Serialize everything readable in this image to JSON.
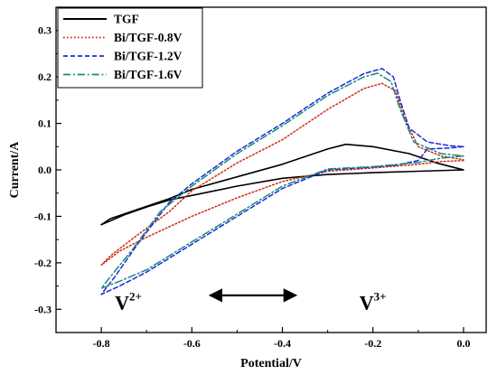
{
  "chart_data": {
    "type": "line",
    "title": "",
    "xlabel": "Potential/V",
    "ylabel": "Current/A",
    "xlim": [
      -0.9,
      0.05
    ],
    "ylim": [
      -0.35,
      0.35
    ],
    "x_ticks": [
      -0.8,
      -0.6,
      -0.4,
      -0.2,
      0.0
    ],
    "x_tick_labels": [
      "-0.8",
      "-0.6",
      "-0.4",
      "-0.2",
      "0.0"
    ],
    "y_ticks": [
      -0.3,
      -0.2,
      -0.1,
      0.0,
      0.1,
      0.2,
      0.3
    ],
    "y_tick_labels": [
      "-0.3",
      "-0.2",
      "-0.1",
      "0.0",
      "0.1",
      "0.2",
      "0.3"
    ],
    "grid": false,
    "legend_position": "top-left",
    "series": [
      {
        "name": "TGF",
        "color": "#000000",
        "dash": "solid",
        "points": [
          [
            0.0,
            0.0
          ],
          [
            -0.1,
            -0.003
          ],
          [
            -0.2,
            -0.006
          ],
          [
            -0.3,
            -0.01
          ],
          [
            -0.4,
            -0.018
          ],
          [
            -0.5,
            -0.035
          ],
          [
            -0.6,
            -0.055
          ],
          [
            -0.65,
            -0.065
          ],
          [
            -0.7,
            -0.08
          ],
          [
            -0.75,
            -0.097
          ],
          [
            -0.8,
            -0.118
          ],
          [
            -0.78,
            -0.105
          ],
          [
            -0.72,
            -0.085
          ],
          [
            -0.65,
            -0.062
          ],
          [
            -0.6,
            -0.042
          ],
          [
            -0.5,
            -0.015
          ],
          [
            -0.4,
            0.012
          ],
          [
            -0.3,
            0.045
          ],
          [
            -0.26,
            0.055
          ],
          [
            -0.2,
            0.05
          ],
          [
            -0.12,
            0.035
          ],
          [
            -0.06,
            0.015
          ],
          [
            0.0,
            0.0
          ]
        ]
      },
      {
        "name": "Bi/TGF-0.8V",
        "color": "#cc2a10",
        "dash": "dotted",
        "points": [
          [
            0.0,
            0.02
          ],
          [
            -0.05,
            0.018
          ],
          [
            -0.1,
            0.012
          ],
          [
            -0.2,
            0.004
          ],
          [
            -0.3,
            -0.003
          ],
          [
            -0.4,
            -0.025
          ],
          [
            -0.5,
            -0.06
          ],
          [
            -0.6,
            -0.1
          ],
          [
            -0.7,
            -0.145
          ],
          [
            -0.76,
            -0.175
          ],
          [
            -0.8,
            -0.205
          ],
          [
            -0.78,
            -0.185
          ],
          [
            -0.72,
            -0.14
          ],
          [
            -0.65,
            -0.09
          ],
          [
            -0.6,
            -0.045
          ],
          [
            -0.5,
            0.015
          ],
          [
            -0.4,
            0.065
          ],
          [
            -0.3,
            0.13
          ],
          [
            -0.22,
            0.175
          ],
          [
            -0.18,
            0.186
          ],
          [
            -0.15,
            0.17
          ],
          [
            -0.13,
            0.11
          ],
          [
            -0.1,
            0.05
          ],
          [
            -0.05,
            0.03
          ],
          [
            0.0,
            0.022
          ]
        ]
      },
      {
        "name": "Bi/TGF-1.2V",
        "color": "#1a2ad6",
        "dash": "dashed",
        "points": [
          [
            0.0,
            0.05
          ],
          [
            -0.03,
            0.047
          ],
          [
            -0.08,
            0.045
          ],
          [
            -0.1,
            0.02
          ],
          [
            -0.15,
            0.01
          ],
          [
            -0.2,
            0.006
          ],
          [
            -0.3,
            0.0
          ],
          [
            -0.4,
            -0.04
          ],
          [
            -0.5,
            -0.1
          ],
          [
            -0.6,
            -0.16
          ],
          [
            -0.7,
            -0.22
          ],
          [
            -0.76,
            -0.25
          ],
          [
            -0.8,
            -0.268
          ],
          [
            -0.77,
            -0.23
          ],
          [
            -0.72,
            -0.16
          ],
          [
            -0.65,
            -0.07
          ],
          [
            -0.6,
            -0.03
          ],
          [
            -0.5,
            0.04
          ],
          [
            -0.4,
            0.1
          ],
          [
            -0.3,
            0.165
          ],
          [
            -0.22,
            0.207
          ],
          [
            -0.18,
            0.218
          ],
          [
            -0.155,
            0.2
          ],
          [
            -0.14,
            0.15
          ],
          [
            -0.12,
            0.09
          ],
          [
            -0.08,
            0.06
          ],
          [
            -0.03,
            0.052
          ],
          [
            0.0,
            0.05
          ]
        ]
      },
      {
        "name": "Bi/TGF-1.6V",
        "color": "#198a78",
        "dash": "dashdot",
        "points": [
          [
            0.0,
            0.03
          ],
          [
            -0.05,
            0.025
          ],
          [
            -0.1,
            0.016
          ],
          [
            -0.2,
            0.007
          ],
          [
            -0.3,
            0.002
          ],
          [
            -0.4,
            -0.035
          ],
          [
            -0.5,
            -0.095
          ],
          [
            -0.6,
            -0.155
          ],
          [
            -0.7,
            -0.215
          ],
          [
            -0.76,
            -0.24
          ],
          [
            -0.8,
            -0.255
          ],
          [
            -0.78,
            -0.23
          ],
          [
            -0.73,
            -0.17
          ],
          [
            -0.67,
            -0.09
          ],
          [
            -0.6,
            -0.035
          ],
          [
            -0.5,
            0.035
          ],
          [
            -0.4,
            0.095
          ],
          [
            -0.3,
            0.16
          ],
          [
            -0.22,
            0.2
          ],
          [
            -0.19,
            0.208
          ],
          [
            -0.16,
            0.19
          ],
          [
            -0.14,
            0.13
          ],
          [
            -0.11,
            0.06
          ],
          [
            -0.05,
            0.035
          ],
          [
            0.0,
            0.03
          ]
        ]
      }
    ],
    "annotations": {
      "left": {
        "base": "V",
        "sup": "2+",
        "x": -0.77,
        "y": -0.3
      },
      "right": {
        "base": "V",
        "sup": "3+",
        "x": -0.23,
        "y": -0.3
      },
      "arrow": {
        "from": -0.56,
        "to": -0.37,
        "y": -0.27,
        "direction": "both"
      }
    }
  }
}
